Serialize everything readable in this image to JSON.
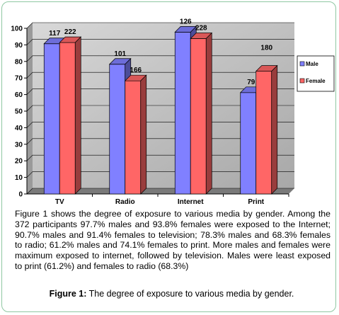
{
  "chart_data": {
    "type": "bar",
    "categories": [
      "TV",
      "Radio",
      "Internet",
      "Print"
    ],
    "series": [
      {
        "name": "Male",
        "color": "#8080ff",
        "values": [
          90.7,
          78.3,
          97.7,
          61.2
        ],
        "labels": [
          "117",
          "101",
          "126",
          "79"
        ]
      },
      {
        "name": "Female",
        "color": "#ff6666",
        "values": [
          91.4,
          68.3,
          93.8,
          74.1
        ],
        "labels": [
          "222",
          "166",
          "228",
          "180"
        ]
      }
    ],
    "title": "",
    "xlabel": "",
    "ylabel": "",
    "ylim": [
      0,
      100
    ],
    "yticks": [
      "0",
      "10",
      "20",
      "30",
      "40",
      "50",
      "60",
      "70",
      "80",
      "90",
      "100"
    ],
    "legend": "right",
    "grid": true,
    "wall_color": "#c0c0c0"
  },
  "description": "Figure 1 shows the degree of exposure to various media by gender. Among the 372 participants 97.7% males and 93.8% females were exposed to the Internet; 90.7% males and 91.4% females to television; 78.3% males and 68.3% females to radio; 61.2% males and 74.1% females to print. More males and females were maximum exposed to internet, followed by television. Males were least exposed to print (61.2%) and females to radio (68.3%)",
  "caption": {
    "label": "Figure 1:",
    "text": " The degree of exposure to various media by gender."
  }
}
